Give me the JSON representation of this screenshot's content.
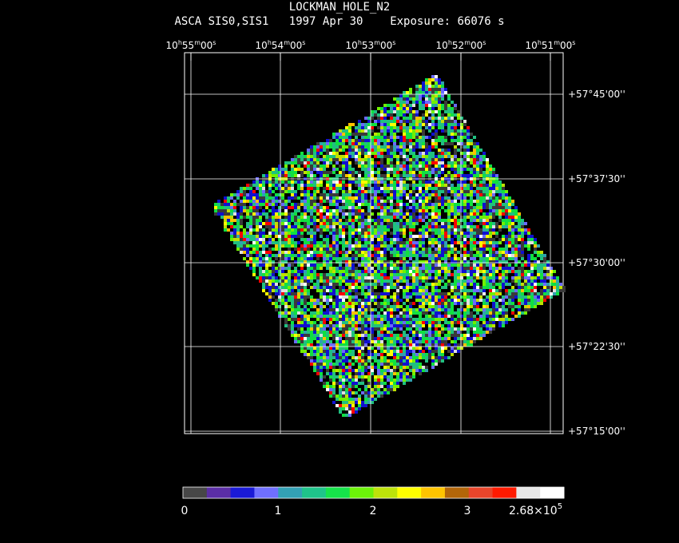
{
  "header": {
    "title": "LOCKMAN_HOLE_N2",
    "subtitle": "ASCA SIS0,SIS1   1997 Apr 30    Exposure: 66076 s"
  },
  "axes": {
    "ra_ticks": [
      {
        "h": "10",
        "m": "55",
        "s": "00"
      },
      {
        "h": "10",
        "m": "54",
        "s": "00"
      },
      {
        "h": "10",
        "m": "53",
        "s": "00"
      },
      {
        "h": "10",
        "m": "52",
        "s": "00"
      },
      {
        "h": "10",
        "m": "51",
        "s": "00"
      }
    ],
    "dec_ticks": [
      "+57°45'00''",
      "+57°37'30''",
      "+57°30'00''",
      "+57°22'30''",
      "+57°15'00''"
    ]
  },
  "image": {
    "description_colors": [
      "#3a3a3a",
      "#5a2aa0",
      "#1010d0",
      "#6a6aff",
      "#30a0b0",
      "#20c080",
      "#10e040",
      "#70f000",
      "#c0e000",
      "#ffff00",
      "#ffc000",
      "#b06000",
      "#e04020",
      "#ff0000",
      "#e0e0e0",
      "#ffffff"
    ]
  },
  "colorbar": {
    "labels": [
      "0",
      "1",
      "2",
      "3"
    ],
    "max_label": "2.68×10",
    "max_exp": "5",
    "colors": [
      "#474747",
      "#5b2ea6",
      "#1a1ad6",
      "#6f6fff",
      "#33a1b5",
      "#1fc48a",
      "#16e34a",
      "#6cf209",
      "#bde30a",
      "#ffff00",
      "#ffc400",
      "#b36609",
      "#e8452b",
      "#ff1a00",
      "#e6e6e6",
      "#ffffff"
    ]
  }
}
